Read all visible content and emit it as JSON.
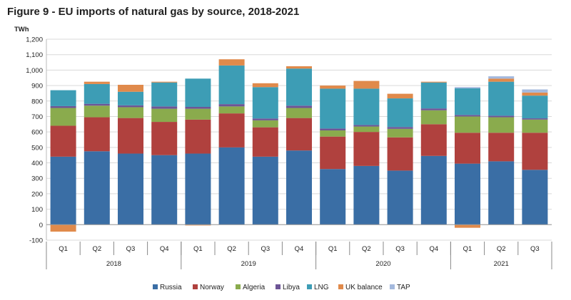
{
  "title": "Figure 9 - EU imports of natural gas by source, 2018-2021",
  "chart_data": {
    "type": "bar",
    "stacked": true,
    "unit": "TWh",
    "ylim": [
      -100,
      1200
    ],
    "yticks": [
      -100,
      0,
      100,
      200,
      300,
      400,
      500,
      600,
      700,
      800,
      900,
      1000,
      1100,
      1200
    ],
    "ytick_labels": [
      "-100",
      "0",
      "100",
      "200",
      "300",
      "400",
      "500",
      "600",
      "700",
      "800",
      "900",
      "1,000",
      "1,100",
      "1,200"
    ],
    "grid": "horizontal",
    "legend_position": "bottom",
    "years": [
      {
        "label": "2018",
        "quarters": 4
      },
      {
        "label": "2019",
        "quarters": 4
      },
      {
        "label": "2020",
        "quarters": 4
      },
      {
        "label": "2021",
        "quarters": 3
      }
    ],
    "categories": [
      "Q1",
      "Q2",
      "Q3",
      "Q4",
      "Q1",
      "Q2",
      "Q3",
      "Q4",
      "Q1",
      "Q2",
      "Q3",
      "Q4",
      "Q1",
      "Q2",
      "Q3"
    ],
    "series": [
      {
        "name": "Russia",
        "color": "#3a6ea5",
        "values": [
          440,
          475,
          460,
          450,
          460,
          500,
          440,
          480,
          360,
          380,
          350,
          445,
          395,
          410,
          355
        ]
      },
      {
        "name": "Norway",
        "color": "#b0413e",
        "values": [
          200,
          220,
          230,
          215,
          220,
          220,
          190,
          210,
          210,
          220,
          215,
          205,
          200,
          185,
          240
        ]
      },
      {
        "name": "Algeria",
        "color": "#8aab4d",
        "values": [
          115,
          75,
          70,
          85,
          70,
          45,
          45,
          65,
          40,
          35,
          55,
          90,
          105,
          100,
          85
        ]
      },
      {
        "name": "Libya",
        "color": "#6d5596",
        "values": [
          12,
          12,
          12,
          15,
          12,
          15,
          12,
          15,
          12,
          10,
          12,
          12,
          10,
          10,
          8
        ]
      },
      {
        "name": "LNG",
        "color": "#3d9db5",
        "values": [
          103,
          128,
          88,
          155,
          183,
          250,
          203,
          240,
          258,
          235,
          185,
          168,
          172,
          220,
          147
        ]
      },
      {
        "name": "UK balance",
        "color": "#e08a4b",
        "values": [
          -45,
          15,
          45,
          5,
          -5,
          40,
          25,
          15,
          20,
          50,
          30,
          5,
          -20,
          20,
          20
        ]
      },
      {
        "name": "TAP",
        "color": "#a4b9dd",
        "values": [
          0,
          0,
          0,
          0,
          0,
          0,
          0,
          0,
          0,
          0,
          0,
          0,
          8,
          15,
          20
        ]
      }
    ]
  }
}
